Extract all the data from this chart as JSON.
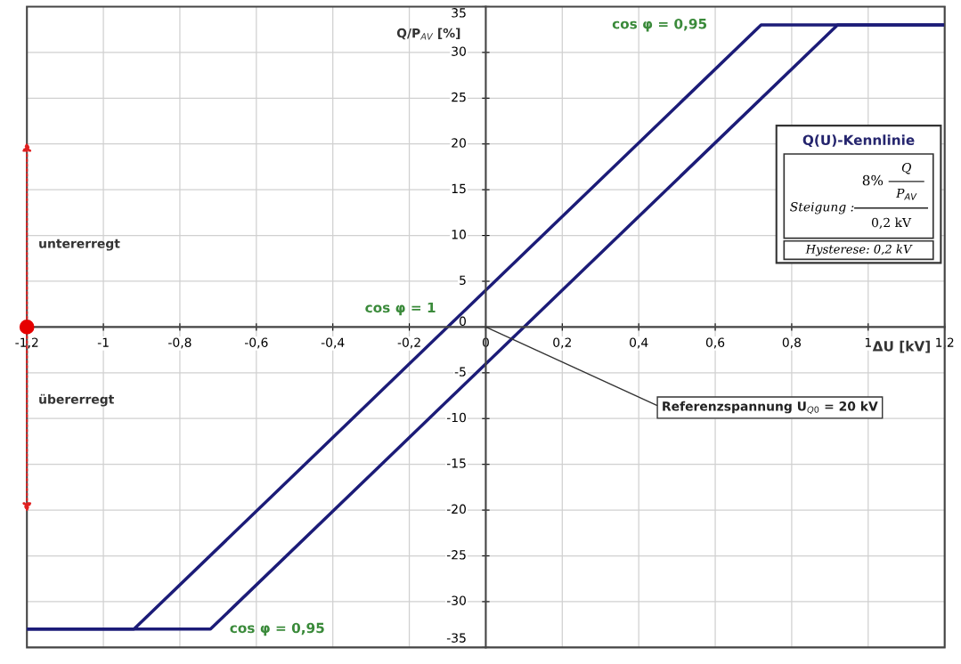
{
  "chart_data": {
    "type": "line",
    "xlabel": "ΔU [kV]",
    "ylabel": "Q/P$_{AV}$ [%]",
    "xlim": [
      -1.2,
      1.2
    ],
    "ylim": [
      -35,
      35
    ],
    "xticks": [
      {
        "value": -1.2,
        "label": "-1,2"
      },
      -1,
      {
        "value": -0.8,
        "label": "-0,8"
      },
      {
        "value": -0.6,
        "label": "-0,6"
      },
      {
        "value": -0.4,
        "label": "-0,4"
      },
      {
        "value": -0.2,
        "label": "-0,2"
      },
      0,
      {
        "value": 0.2,
        "label": "0,2"
      },
      {
        "value": 0.4,
        "label": "0,4"
      },
      {
        "value": 0.6,
        "label": "0,6"
      },
      {
        "value": 0.8,
        "label": "0,8"
      },
      1,
      {
        "value": 1.2,
        "label": "1,2"
      }
    ],
    "yticks": [
      -35,
      -30,
      -25,
      -20,
      -15,
      -10,
      -5,
      0,
      5,
      10,
      15,
      20,
      25,
      30,
      35
    ],
    "grid": true,
    "marker": "none",
    "line_style": "solid",
    "legend": false,
    "series": [
      {
        "color": "#1c1c78",
        "x": [
          -1.2,
          -0.92,
          0.72,
          1.2
        ],
        "values": [
          -33,
          -33,
          33,
          33
        ]
      },
      {
        "color": "#1c1c78",
        "x": [
          -1.2,
          -0.72,
          0.92,
          1.2
        ],
        "values": [
          -33,
          -33,
          33,
          33
        ]
      }
    ],
    "annotations": [
      "cos φ = 0,95",
      {
        "text": "cos φ = 1",
        "x": -0.1,
        "y": 0
      },
      {
        "text": "cos φ = 0,95",
        "x": -0.72,
        "y": -33
      },
      "Referenzspannung U$_{Q0}$ = 20 kV",
      "untererregt",
      "übererregt",
      "Q(U)-Kennlinie",
      "Steigung :",
      "8%",
      "Q",
      "P$_{AV}$",
      "0,2 kV",
      "Hysterese: 0,2 kV"
    ]
  }
}
